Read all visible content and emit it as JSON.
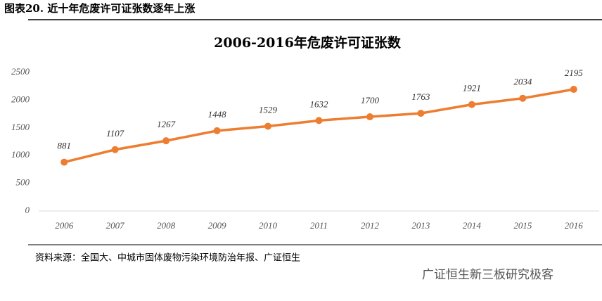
{
  "header": {
    "title": "图表20. 近十年危废许可证张数逐年上涨"
  },
  "chart_data": {
    "type": "line",
    "title": "2006-2016年危废许可证张数",
    "categories": [
      "2006",
      "2007",
      "2008",
      "2009",
      "2010",
      "2011",
      "2012",
      "2013",
      "2014",
      "2015",
      "2016"
    ],
    "values": [
      881,
      1107,
      1267,
      1448,
      1529,
      1632,
      1700,
      1763,
      1921,
      2034,
      2195
    ],
    "color": "#ed7d31",
    "ylim": [
      0,
      2500
    ],
    "yticks": [
      0,
      500,
      1000,
      1500,
      2000,
      2500
    ],
    "grid": false
  },
  "source": "资料来源：全国大、中城市固体废物污染环境防治年报、广证恒生",
  "watermark": "广证恒生新三板研究极客"
}
